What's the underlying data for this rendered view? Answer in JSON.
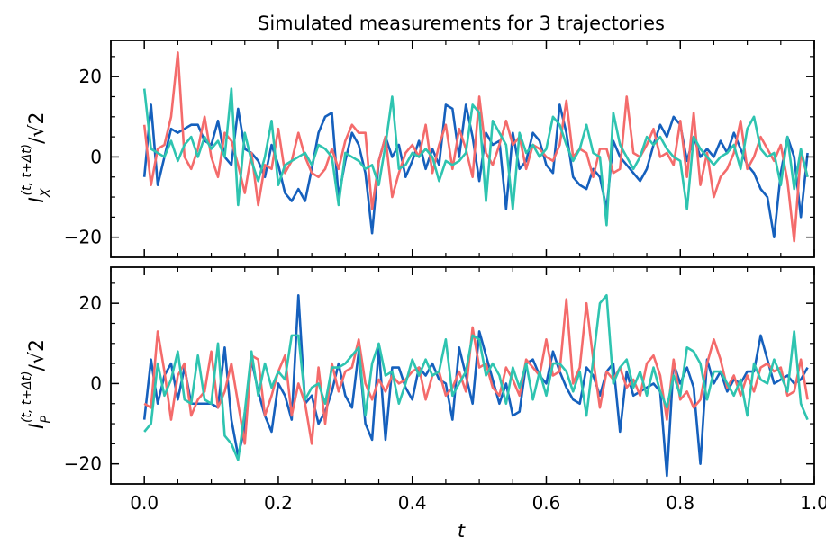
{
  "chart_data": [
    {
      "type": "line",
      "title": "Simulated measurements for 3 trajectories",
      "ylabel": "I_X^{(t, t+Δt)}/√2",
      "ylabel_parts": {
        "main": "I",
        "sub": "X",
        "sup": "(t, t+Δt)",
        "tail": "/√2"
      },
      "xlabel": "",
      "xlim": [
        -0.05,
        1.0
      ],
      "ylim": [
        -25,
        29
      ],
      "yticks": [
        -20,
        0,
        20
      ],
      "ytick_labels": [
        "−20",
        "0",
        "20"
      ],
      "xticks": [
        0.0,
        0.2,
        0.4,
        0.6,
        0.8,
        1.0
      ],
      "xtick_labels": [],
      "grid": false,
      "x": {
        "start": 0.0,
        "step": 0.01,
        "count": 100
      },
      "series": [
        {
          "color": "#1560bd",
          "values": [
            -5,
            13,
            -7,
            0,
            7,
            6,
            7,
            8,
            8,
            4,
            3,
            9,
            0,
            -2,
            12,
            2,
            1,
            -1,
            -5,
            3,
            -2,
            -9,
            -11,
            -8,
            -11,
            -3,
            6,
            10,
            11,
            -10,
            -1,
            6,
            3,
            -4,
            -19,
            -1,
            5,
            0,
            3,
            -5,
            -1,
            4,
            -3,
            2,
            -2,
            13,
            12,
            0,
            13,
            5,
            -6,
            6,
            3,
            4,
            -13,
            6,
            -3,
            -1,
            6,
            4,
            -2,
            -4,
            13,
            6,
            -5,
            -7,
            -8,
            -3,
            -5,
            -13,
            4,
            0,
            -2,
            -4,
            -6,
            -3,
            3,
            8,
            5,
            10,
            8,
            -1,
            5,
            0,
            2,
            0,
            4,
            1,
            6,
            2,
            -2,
            -4,
            -8,
            -10,
            -20,
            -4,
            5,
            0,
            -15,
            1
          ]
        },
        {
          "color": "#f46b6b",
          "values": [
            8,
            -7,
            2,
            3,
            10,
            26,
            0,
            -3,
            2,
            10,
            0,
            -5,
            6,
            4,
            -2,
            -9,
            1,
            -12,
            -2,
            -3,
            7,
            -4,
            -1,
            6,
            0,
            -4,
            -5,
            -3,
            2,
            -3,
            4,
            8,
            6,
            6,
            -13,
            -1,
            5,
            -10,
            -4,
            1,
            3,
            0,
            8,
            -4,
            3,
            8,
            -3,
            7,
            2,
            -5,
            15,
            1,
            -2,
            3,
            9,
            3,
            5,
            -3,
            3,
            2,
            0,
            -1,
            3,
            14,
            0,
            2,
            1,
            -5,
            2,
            2,
            -4,
            -3,
            15,
            1,
            0,
            3,
            7,
            0,
            1,
            -2,
            9,
            -5,
            11,
            -7,
            1,
            -10,
            -5,
            -3,
            1,
            9,
            -3,
            0,
            5,
            2,
            -1,
            3,
            -6,
            -21,
            1,
            -5
          ]
        },
        {
          "color": "#2ec4b0",
          "values": [
            17,
            2,
            1,
            0,
            4,
            -1,
            3,
            5,
            0,
            5,
            2,
            4,
            0,
            17,
            -12,
            6,
            -1,
            -6,
            0,
            9,
            -7,
            -2,
            -1,
            0,
            1,
            -2,
            3,
            2,
            0,
            -12,
            1,
            0,
            -1,
            -3,
            -2,
            -7,
            3,
            15,
            -3,
            -2,
            1,
            0,
            2,
            0,
            -6,
            -1,
            -2,
            -1,
            1,
            13,
            11,
            -11,
            9,
            6,
            3,
            -13,
            6,
            1,
            3,
            0,
            2,
            10,
            8,
            3,
            -1,
            2,
            8,
            1,
            0,
            -17,
            11,
            3,
            0,
            -3,
            0,
            5,
            3,
            5,
            2,
            0,
            -1,
            -13,
            5,
            2,
            0,
            -2,
            0,
            1,
            3,
            -3,
            7,
            10,
            2,
            0,
            1,
            -7,
            5,
            -8,
            2,
            -5
          ]
        }
      ]
    },
    {
      "type": "line",
      "title": "",
      "ylabel": "I_P^{(t, t+Δt)}/√2",
      "ylabel_parts": {
        "main": "I",
        "sub": "P",
        "sup": "(t, t+Δt)",
        "tail": "/√2"
      },
      "xlabel": "t",
      "xlim": [
        -0.05,
        1.0
      ],
      "ylim": [
        -25,
        29
      ],
      "yticks": [
        -20,
        0,
        20
      ],
      "ytick_labels": [
        "−20",
        "0",
        "20"
      ],
      "xticks": [
        0.0,
        0.2,
        0.4,
        0.6,
        0.8,
        1.0
      ],
      "xtick_labels": [
        "0.0",
        "0.2",
        "0.4",
        "0.6",
        "0.8",
        "1.0"
      ],
      "grid": false,
      "x": {
        "start": 0.0,
        "step": 0.01,
        "count": 100
      },
      "series": [
        {
          "color": "#1560bd",
          "values": [
            -9,
            6,
            -5,
            2,
            5,
            -4,
            4,
            -5,
            -5,
            -5,
            -5,
            -6,
            9,
            -9,
            -18,
            -11,
            6,
            -2,
            -8,
            -12,
            0,
            -3,
            -9,
            22,
            -5,
            -3,
            -10,
            -7,
            -2,
            5,
            -3,
            -6,
            8,
            -10,
            -14,
            9,
            -14,
            4,
            4,
            -1,
            -4,
            4,
            2,
            5,
            1,
            0,
            -9,
            9,
            2,
            -5,
            13,
            7,
            1,
            -5,
            0,
            -8,
            -7,
            5,
            6,
            2,
            0,
            8,
            3,
            -1,
            -4,
            -5,
            4,
            2,
            -3,
            3,
            5,
            -12,
            3,
            -3,
            -2,
            -1,
            0,
            -2,
            -23,
            5,
            0,
            4,
            -1,
            -20,
            6,
            0,
            3,
            -2,
            1,
            0,
            3,
            3,
            12,
            6,
            0,
            1,
            2,
            0,
            1,
            4
          ]
        },
        {
          "color": "#f46b6b",
          "values": [
            -5,
            -6,
            13,
            3,
            -9,
            2,
            5,
            -8,
            -4,
            -2,
            8,
            -6,
            -2,
            5,
            -5,
            -15,
            7,
            6,
            -8,
            -3,
            3,
            7,
            -8,
            0,
            -5,
            -15,
            4,
            -10,
            5,
            -2,
            3,
            4,
            11,
            0,
            -4,
            1,
            -2,
            2,
            0,
            1,
            3,
            4,
            -4,
            2,
            3,
            -3,
            -1,
            3,
            -2,
            14,
            4,
            5,
            -1,
            -3,
            4,
            1,
            -3,
            6,
            4,
            2,
            11,
            2,
            3,
            21,
            0,
            4,
            20,
            6,
            -6,
            3,
            1,
            4,
            -1,
            1,
            -3,
            5,
            7,
            2,
            -9,
            6,
            -4,
            -2,
            -6,
            -4,
            5,
            11,
            6,
            -1,
            2,
            -3,
            2,
            -2,
            4,
            5,
            3,
            4,
            -3,
            -2,
            6,
            -4
          ]
        },
        {
          "color": "#2ec4b0",
          "values": [
            -12,
            -10,
            5,
            -3,
            1,
            8,
            -4,
            -5,
            7,
            -4,
            -5,
            10,
            -13,
            -15,
            -19,
            -7,
            8,
            -3,
            5,
            -1,
            3,
            1,
            12,
            12,
            -4,
            -1,
            0,
            -5,
            4,
            4,
            5,
            7,
            9,
            -8,
            5,
            10,
            2,
            3,
            -5,
            0,
            6,
            2,
            6,
            2,
            3,
            11,
            -3,
            0,
            3,
            12,
            11,
            2,
            5,
            2,
            -5,
            4,
            -1,
            5,
            -4,
            3,
            -3,
            5,
            5,
            3,
            -2,
            3,
            -8,
            6,
            20,
            22,
            0,
            4,
            6,
            -1,
            3,
            -3,
            4,
            -2,
            -6,
            2,
            -3,
            9,
            8,
            5,
            -4,
            3,
            3,
            0,
            -3,
            1,
            -8,
            5,
            1,
            0,
            6,
            2,
            -2,
            13,
            -5,
            -9
          ]
        }
      ]
    }
  ]
}
